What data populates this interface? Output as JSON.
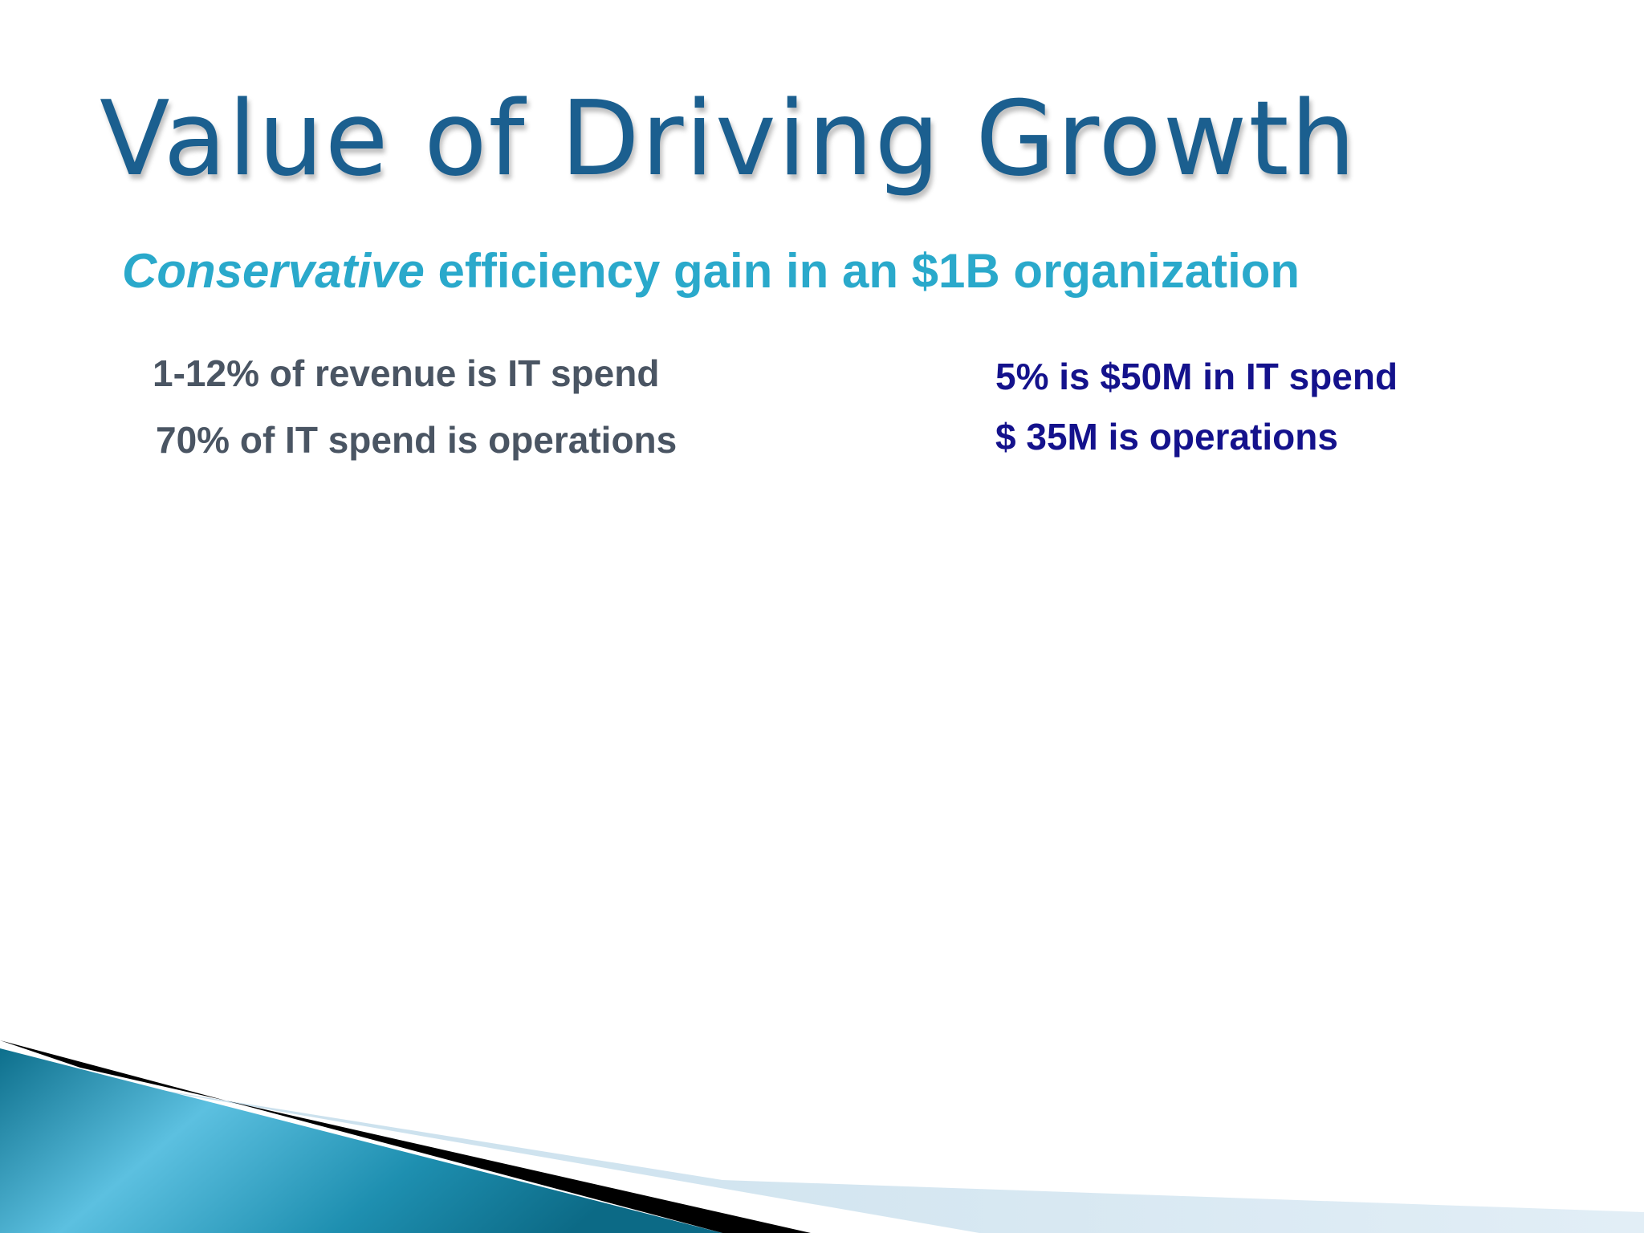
{
  "slide": {
    "title": "Value of Driving Growth",
    "subtitle": {
      "emphasis": "Conservative",
      "rest": " efficiency gain in an $1B organization"
    },
    "left_points": [
      "1-12% of revenue is IT spend",
      "70% of IT spend is operations"
    ],
    "right_points": [
      "5% is $50M in IT spend",
      "$ 35M is operations"
    ]
  },
  "colors": {
    "title": "#1b5f8f",
    "subtitle": "#2aa9cb",
    "left_text": "#4a5563",
    "right_text": "#14128c",
    "accent_teal": "#1a7f9e"
  }
}
